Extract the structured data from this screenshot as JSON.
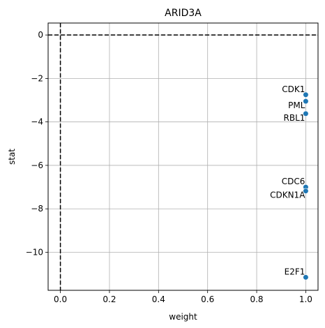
{
  "chart_data": {
    "type": "scatter",
    "title": "ARID3A",
    "xlabel": "weight",
    "ylabel": "stat",
    "xlim": [
      -0.05,
      1.05
    ],
    "ylim": [
      -11.75,
      0.55
    ],
    "xticks": [
      0.0,
      0.2,
      0.4,
      0.6,
      0.8,
      1.0
    ],
    "xtick_labels": [
      "0.0",
      "0.2",
      "0.4",
      "0.6",
      "0.8",
      "1.0"
    ],
    "yticks": [
      0,
      -2,
      -4,
      -6,
      -8,
      -10
    ],
    "ytick_labels": [
      "0",
      "−2",
      "−4",
      "−6",
      "−8",
      "−10"
    ],
    "grid": true,
    "reference_lines": {
      "x": 0,
      "y": 0,
      "style": "dashed",
      "color": "#000000"
    },
    "point_color": "#1f77b4",
    "points": [
      {
        "label": "CDK1",
        "x": 1.0,
        "y": -2.75
      },
      {
        "label": "PML",
        "x": 1.0,
        "y": -3.05
      },
      {
        "label": "RBL1",
        "x": 1.0,
        "y": -3.62
      },
      {
        "label": "CDC6",
        "x": 1.0,
        "y": -7.0
      },
      {
        "label": "CDKN1A",
        "x": 1.0,
        "y": -7.18
      },
      {
        "label": "E2F1",
        "x": 1.0,
        "y": -11.15
      }
    ]
  }
}
